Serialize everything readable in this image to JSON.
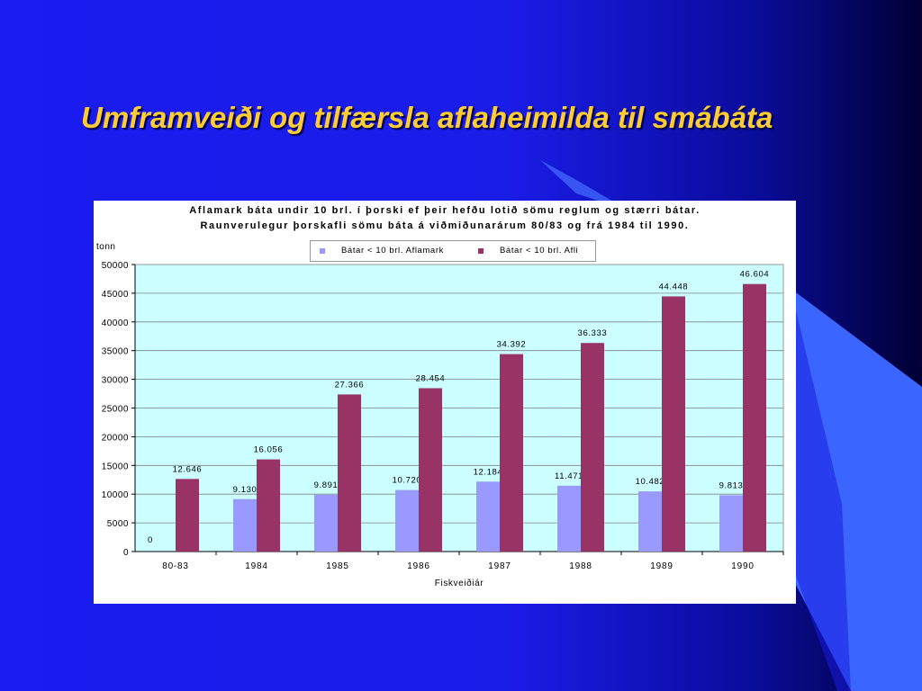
{
  "slide": {
    "title": "Umframveiði og tilfærsla aflaheimilda til smábáta"
  },
  "colors": {
    "background": "#1a1ce8",
    "title": "#ffcc33",
    "plot_area": "#ccffff",
    "series_1": "#9999ff",
    "series_2": "#993366"
  },
  "chart_data": {
    "type": "bar",
    "title_line1": "Aflamark báta undir 10 brl. í þorski ef þeir hefðu lotið sömu reglum og stærri bátar.",
    "title_line2": "Raunverulegur þorskafli sömu báta á viðmiðunarárum 80/83 og frá 1984 til 1990.",
    "xlabel": "Fiskveiðiár",
    "ylabel": "tonn",
    "categories": [
      "80-83",
      "1984",
      "1985",
      "1986",
      "1987",
      "1988",
      "1989",
      "1990"
    ],
    "ylim": [
      0,
      50000
    ],
    "yticks": [
      "0",
      "5000",
      "10000",
      "15000",
      "20000",
      "25000",
      "30000",
      "35000",
      "40000",
      "45000",
      "50000"
    ],
    "grid": true,
    "legend_position": "top",
    "series": [
      {
        "name": "Bátar < 10 brl. Aflamark",
        "values": [
          0,
          9130,
          9891,
          10720,
          12184,
          11471,
          10482,
          9813
        ],
        "labels": [
          "0",
          "9.130",
          "9.891",
          "10.720",
          "12.184",
          "11.471",
          "10.482",
          "9.813"
        ]
      },
      {
        "name": "Bátar < 10 brl. Afli",
        "values": [
          12646,
          16056,
          27366,
          28454,
          34392,
          36333,
          44448,
          46604
        ],
        "labels": [
          "12.646",
          "16.056",
          "27.366",
          "28.454",
          "34.392",
          "36.333",
          "44.448",
          "46.604"
        ]
      }
    ]
  }
}
